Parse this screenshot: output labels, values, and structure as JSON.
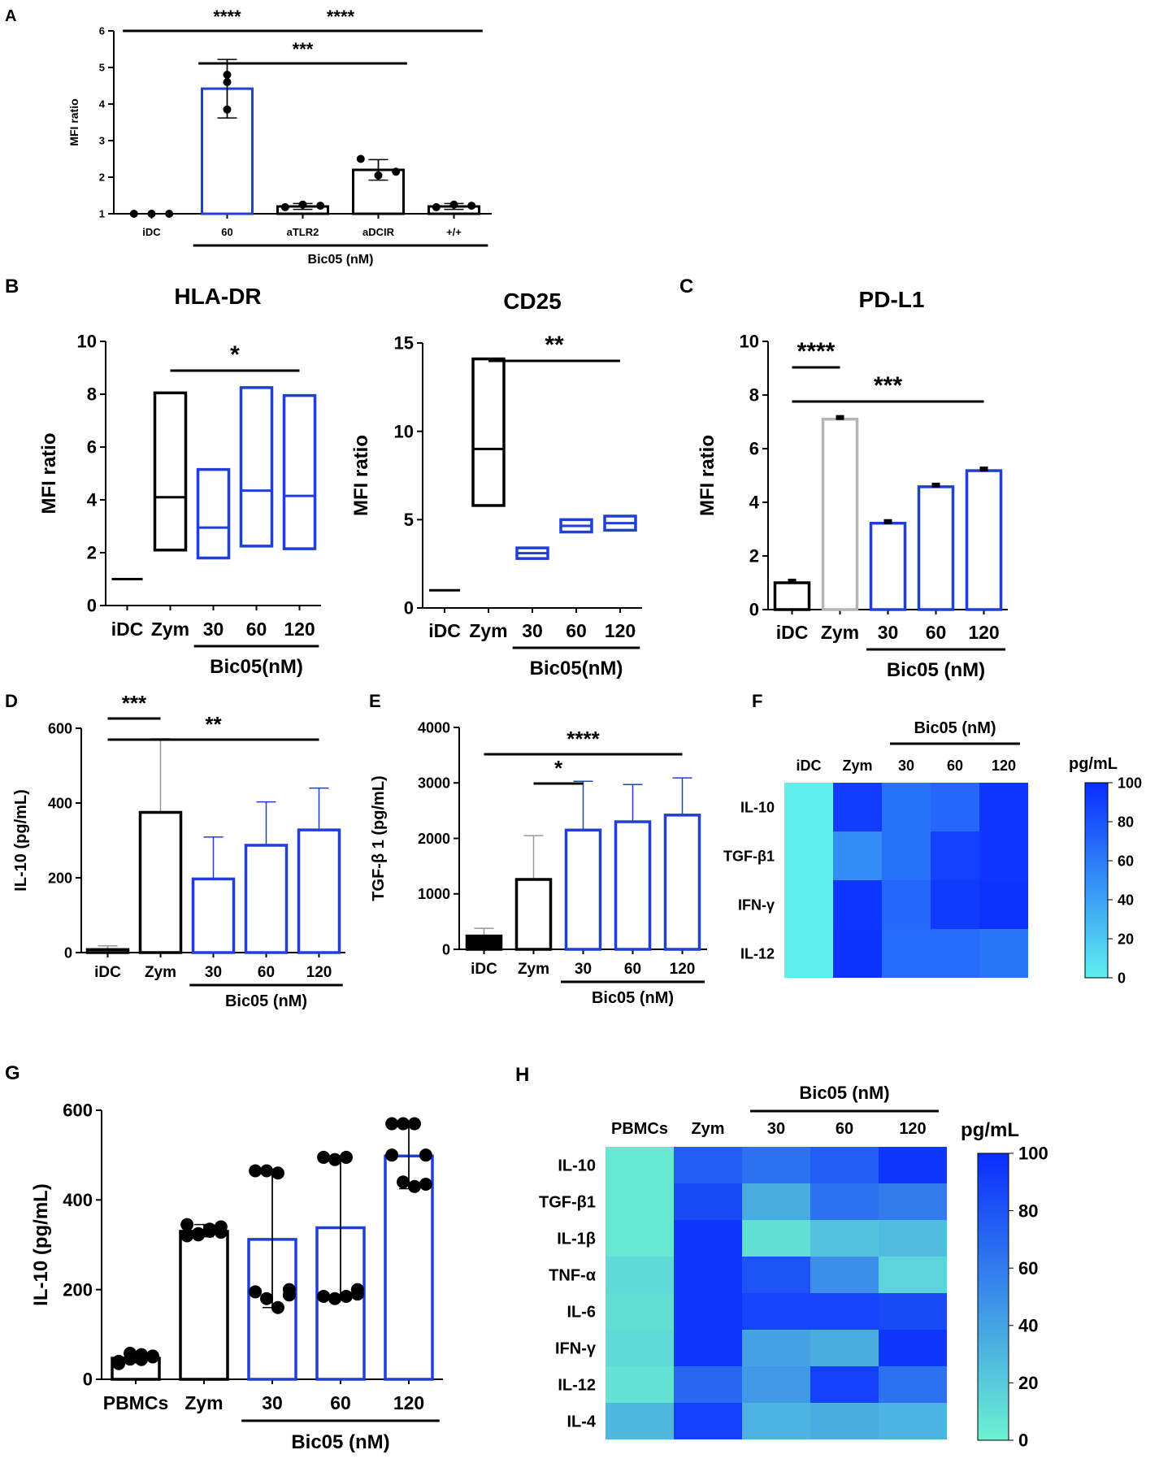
{
  "colors": {
    "black": "#000000",
    "blue": "#1f3fd6",
    "gray": "#b5b5b5",
    "hm_low": "#5ff0ee",
    "hm_high": "#0a2cff",
    "hm2_low": "#6cf2d2",
    "hm2_high": "#0a2cff"
  },
  "chart_data": [
    {
      "id": "A",
      "type": "bar",
      "panel_label": "A",
      "ylabel": "MFI ratio",
      "ylim": [
        1,
        6
      ],
      "yticks": [
        1,
        2,
        3,
        4,
        5,
        6
      ],
      "categories": [
        "iDC",
        "60",
        "aTLR2",
        "aDCIR",
        "+/+"
      ],
      "values": [
        1.0,
        4.42,
        1.2,
        2.2,
        1.2
      ],
      "errors": [
        0,
        0.8,
        0.08,
        0.28,
        0.08
      ],
      "points": [
        [
          1,
          1,
          1
        ],
        [
          4.8,
          4.6,
          3.85
        ],
        [
          1.18,
          1.25,
          1.22
        ],
        [
          2.5,
          2.05,
          2.15
        ],
        [
          1.18,
          1.25,
          1.22
        ]
      ],
      "colors": [
        "black",
        "blue",
        "black",
        "black",
        "black"
      ],
      "group_label": "Bic05 (nM)",
      "group_span": [
        1,
        4
      ],
      "significance": [
        {
          "from": 0,
          "to": 2,
          "label": "****",
          "level": 0
        },
        {
          "from": 1,
          "to": 4,
          "label": "****",
          "level": 0
        },
        {
          "from": 1,
          "to": 3,
          "label": "***",
          "level": 1
        }
      ]
    },
    {
      "id": "B1",
      "type": "floating_bar",
      "panel_label": "B",
      "title": "HLA-DR",
      "ylabel": "MFI ratio",
      "ylim": [
        0,
        10
      ],
      "yticks": [
        0,
        2,
        4,
        6,
        8,
        10
      ],
      "categories": [
        "iDC",
        "Zym",
        "30",
        "60",
        "120"
      ],
      "min": [
        1,
        2.1,
        1.8,
        2.25,
        2.15
      ],
      "max": [
        1,
        8.05,
        5.15,
        8.25,
        7.95
      ],
      "mean": [
        1,
        4.1,
        2.95,
        4.35,
        4.15
      ],
      "colors": [
        "black",
        "black",
        "blue",
        "blue",
        "blue"
      ],
      "group_label": "Bic05(nM)",
      "group_span": [
        2,
        4
      ],
      "significance": [
        {
          "from": 1,
          "to": 4,
          "label": "*",
          "level": 0
        }
      ]
    },
    {
      "id": "B2",
      "type": "floating_bar",
      "title": "CD25",
      "ylabel": "MFI ratio",
      "ylim": [
        0,
        15
      ],
      "yticks": [
        0,
        5,
        10,
        15
      ],
      "categories": [
        "iDC",
        "Zym",
        "30",
        "60",
        "120"
      ],
      "min": [
        1,
        5.8,
        2.8,
        4.3,
        4.4
      ],
      "max": [
        1,
        14.1,
        3.4,
        5.0,
        5.2
      ],
      "mean": [
        1,
        9.0,
        3.1,
        4.65,
        4.8
      ],
      "colors": [
        "black",
        "black",
        "blue",
        "blue",
        "blue"
      ],
      "group_label": "Bic05(nM)",
      "group_span": [
        2,
        4
      ],
      "significance": [
        {
          "from": 1,
          "to": 4,
          "label": "**",
          "level": 0
        }
      ]
    },
    {
      "id": "C",
      "type": "bar",
      "panel_label": "C",
      "title": "PD-L1",
      "ylabel": "MFI ratio",
      "ylim": [
        0,
        10
      ],
      "yticks": [
        0,
        2,
        4,
        6,
        8,
        10
      ],
      "categories": [
        "iDC",
        "Zym",
        "30",
        "60",
        "120"
      ],
      "values": [
        1.0,
        7.1,
        3.22,
        4.58,
        5.18
      ],
      "errors": [
        0,
        0,
        0,
        0,
        0
      ],
      "points": [
        [
          1.0
        ],
        [
          7.1
        ],
        [
          3.22
        ],
        [
          4.58
        ],
        [
          5.18
        ]
      ],
      "colors": [
        "black",
        "gray",
        "blue",
        "blue",
        "blue"
      ],
      "group_label": "Bic05 (nM)",
      "group_span": [
        2,
        4
      ],
      "significance": [
        {
          "from": 0,
          "to": 1,
          "label": "****",
          "level": 0
        },
        {
          "from": 0,
          "to": 4,
          "label": "***",
          "level": 1
        }
      ]
    },
    {
      "id": "D",
      "type": "bar",
      "panel_label": "D",
      "ylabel": "IL-10 (pg/mL)",
      "ylim": [
        0,
        600
      ],
      "yticks": [
        0,
        200,
        400,
        600
      ],
      "categories": [
        "iDC",
        "Zym",
        "30",
        "60",
        "120"
      ],
      "values": [
        8,
        375,
        197,
        287,
        328
      ],
      "errors": [
        10,
        197,
        112,
        116,
        112
      ],
      "colors": [
        "black",
        "black",
        "blue",
        "blue",
        "blue"
      ],
      "group_label": "Bic05 (nM)",
      "group_span": [
        2,
        4
      ],
      "significance": [
        {
          "from": 0,
          "to": 1,
          "label": "***",
          "level": 0
        },
        {
          "from": 0,
          "to": 4,
          "label": "**",
          "level": 1
        }
      ]
    },
    {
      "id": "E",
      "type": "bar",
      "panel_label": "E",
      "ylabel": "TGF-β 1 (pg/mL)",
      "ylim": [
        0,
        4000
      ],
      "yticks": [
        0,
        1000,
        2000,
        3000,
        4000
      ],
      "categories": [
        "iDC",
        "Zym",
        "30",
        "60",
        "120"
      ],
      "values": [
        240,
        1260,
        2150,
        2300,
        2420
      ],
      "errors": [
        140,
        790,
        880,
        670,
        670
      ],
      "colors": [
        "black",
        "black",
        "blue",
        "blue",
        "blue"
      ],
      "filled": [
        true,
        false,
        false,
        false,
        false
      ],
      "group_label": "Bic05 (nM)",
      "group_span": [
        2,
        4
      ],
      "significance": [
        {
          "from": 0,
          "to": 4,
          "label": "****",
          "level": 0
        },
        {
          "from": 1,
          "to": 2,
          "label": "*",
          "level": 1
        }
      ]
    },
    {
      "id": "F",
      "type": "heatmap",
      "panel_label": "F",
      "group_label": "Bic05 (nM)",
      "group_span": [
        2,
        4
      ],
      "columns": [
        "iDC",
        "Zym",
        "30",
        "60",
        "120"
      ],
      "rows": [
        "IL-10",
        "TGF-β1",
        "IFN-γ",
        "IL-12"
      ],
      "values": [
        [
          0,
          92,
          65,
          70,
          95
        ],
        [
          0,
          50,
          65,
          90,
          95
        ],
        [
          0,
          95,
          70,
          93,
          97
        ],
        [
          0,
          97,
          68,
          68,
          62
        ]
      ],
      "colorbar": {
        "title": "pg/mL",
        "min": 0,
        "max": 100,
        "ticks": [
          0,
          20,
          40,
          60,
          80,
          100
        ]
      }
    },
    {
      "id": "G",
      "type": "bar",
      "panel_label": "G",
      "ylabel": "IL-10 (pg/mL)",
      "ylim": [
        0,
        600
      ],
      "yticks": [
        0,
        200,
        400,
        600
      ],
      "categories": [
        "PBMCs",
        "Zym",
        "30",
        "60",
        "120"
      ],
      "values": [
        47,
        330,
        312,
        338,
        498
      ],
      "err_low": [
        37,
        318,
        160,
        180,
        425
      ],
      "err_high": [
        57,
        345,
        465,
        495,
        573
      ],
      "points": [
        [
          40,
          45,
          55,
          50,
          35,
          58,
          44,
          52
        ],
        [
          320,
          325,
          330,
          340,
          345,
          322,
          335,
          328
        ],
        [
          465,
          465,
          460,
          200,
          195,
          180,
          160,
          188
        ],
        [
          495,
          490,
          495,
          200,
          185,
          180,
          185,
          190
        ],
        [
          570,
          570,
          570,
          500,
          500,
          440,
          430,
          435
        ]
      ],
      "colors": [
        "black",
        "black",
        "blue",
        "blue",
        "blue"
      ],
      "group_label": "Bic05 (nM)",
      "group_span": [
        2,
        4
      ],
      "significance": []
    },
    {
      "id": "H",
      "type": "heatmap",
      "panel_label": "H",
      "group_label": "Bic05 (nM)",
      "group_span": [
        2,
        4
      ],
      "columns": [
        "PBMCs",
        "Zym",
        "30",
        "60",
        "120"
      ],
      "rows": [
        "IL-10",
        "TGF-β1",
        "IL-1β",
        "TNF-α",
        "IL-6",
        "IFN-γ",
        "IL-12",
        "IL-4"
      ],
      "values": [
        [
          5,
          75,
          65,
          75,
          95
        ],
        [
          5,
          85,
          35,
          65,
          60
        ],
        [
          5,
          95,
          10,
          25,
          28
        ],
        [
          12,
          95,
          80,
          50,
          15
        ],
        [
          10,
          95,
          88,
          88,
          85
        ],
        [
          12,
          95,
          40,
          35,
          95
        ],
        [
          8,
          70,
          45,
          90,
          65
        ],
        [
          30,
          90,
          32,
          35,
          32
        ]
      ],
      "colorbar": {
        "title": "pg/mL",
        "min": 0,
        "max": 100,
        "ticks": [
          0,
          20,
          40,
          60,
          80,
          100
        ]
      }
    }
  ]
}
